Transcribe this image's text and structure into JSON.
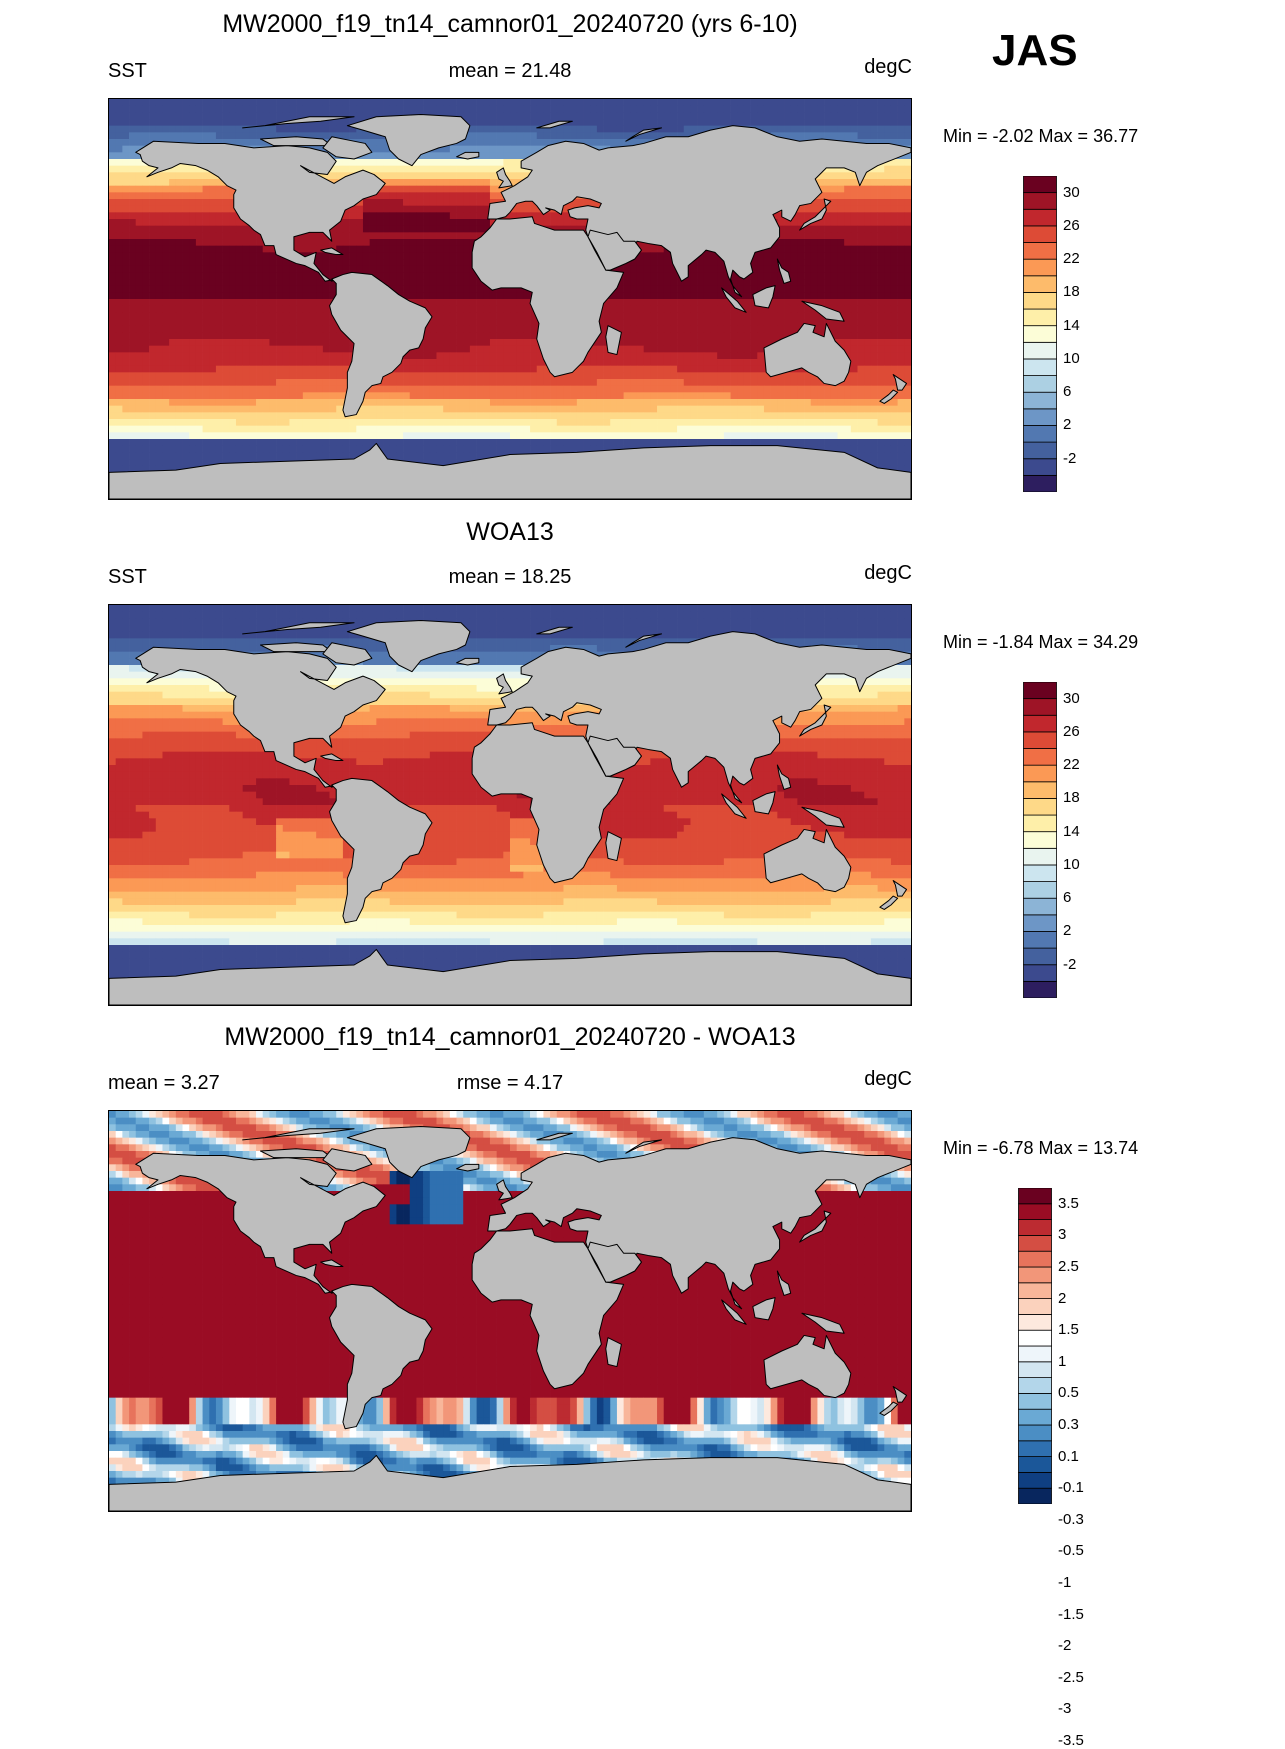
{
  "season": "JAS",
  "units": "degC",
  "colors": {
    "land": "#bebebe",
    "coast": "#000000",
    "sst_scale": [
      "#2d1e5f",
      "#3c4a8e",
      "#44619e",
      "#5278b1",
      "#6d96c6",
      "#8cb4d6",
      "#acd0e3",
      "#cce5ef",
      "#e9f4ef",
      "#fcfdd7",
      "#feefa9",
      "#fed988",
      "#fdbb6b",
      "#fb9955",
      "#f06f45",
      "#dd4b36",
      "#c1272d",
      "#9e1426",
      "#6a0120"
    ],
    "diff_scale": [
      "#08265e",
      "#0f3f82",
      "#1b5799",
      "#2f70b0",
      "#4b8ec4",
      "#6aa9d4",
      "#8fc2e0",
      "#b3d6ea",
      "#d3e6f1",
      "#eef5fa",
      "#ffffff",
      "#fde9de",
      "#fbd2bd",
      "#f8b69a",
      "#f29679",
      "#e7735c",
      "#d44e43",
      "#bc2b31",
      "#9a0c24",
      "#6a0120"
    ]
  },
  "panels": [
    {
      "id": "model",
      "title": "MW2000_f19_tn14_camnor01_20240720 (yrs 6-10)",
      "left": "SST",
      "center": "mean =  21.48",
      "right": "degC",
      "minmax": "Min =  -2.02 Max =  36.77",
      "colorbar": {
        "scale": "sst_scale",
        "labels": [
          "30",
          "26",
          "22",
          "18",
          "14",
          "10",
          "6",
          "2",
          "-2"
        ]
      }
    },
    {
      "id": "obs",
      "title": "WOA13",
      "left": "SST",
      "center": "mean =  18.25",
      "right": "degC",
      "minmax": "Min =  -1.84 Max =  34.29",
      "colorbar": {
        "scale": "sst_scale",
        "labels": [
          "30",
          "26",
          "22",
          "18",
          "14",
          "10",
          "6",
          "2",
          "-2"
        ]
      }
    },
    {
      "id": "diff",
      "title": "MW2000_f19_tn14_camnor01_20240720 - WOA13",
      "left": "mean =   3.27",
      "center": "rmse =   4.17",
      "right": "degC",
      "minmax": "Min =  -6.78 Max =  13.74",
      "colorbar": {
        "scale": "diff_scale",
        "labels": [
          "3.5",
          "3",
          "2.5",
          "2",
          "1.5",
          "1",
          "0.5",
          "0.3",
          "0.1",
          "-0.1",
          "-0.3",
          "-0.5",
          "-1",
          "-1.5",
          "-2",
          "-2.5",
          "-3",
          "-3.5"
        ]
      }
    }
  ]
}
